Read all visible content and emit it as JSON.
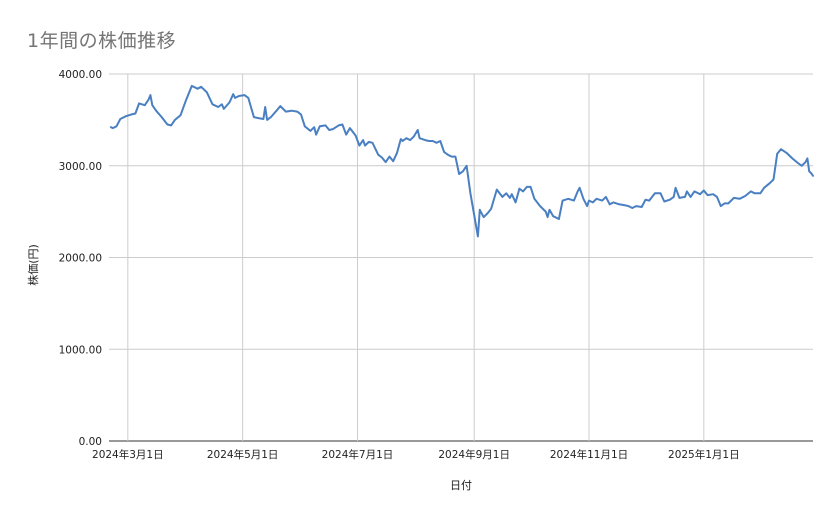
{
  "title": "1年間の株価推移",
  "colors": {
    "line": "#4a7fc1",
    "grid": "#cccccc",
    "axis": "#333333",
    "title": "#757575"
  },
  "chart_data": {
    "type": "line",
    "title": "1年間の株価推移",
    "xlabel": "日付",
    "ylabel": "株価(円)",
    "ylim": [
      0,
      4000
    ],
    "yticks": [
      0,
      1000,
      2000,
      3000,
      4000
    ],
    "ytick_labels": [
      "0.00",
      "1000.00",
      "2000.00",
      "3000.00",
      "4000.00"
    ],
    "xlim": [
      "2024-02-20",
      "2025-02-28"
    ],
    "xticks": [
      "2024-03-01",
      "2024-05-01",
      "2024-07-01",
      "2024-09-01",
      "2024-11-01",
      "2025-01-01"
    ],
    "xtick_labels": [
      "2024年3月1日",
      "2024年5月1日",
      "2024年7月1日",
      "2024年9月1日",
      "2024年11月1日",
      "2025年1月1日"
    ],
    "grid": true,
    "legend": "none",
    "series": [
      {
        "points": [
          [
            "2024-02-21",
            3420
          ],
          [
            "2024-02-22",
            3410
          ],
          [
            "2024-02-24",
            3430
          ],
          [
            "2024-02-26",
            3510
          ],
          [
            "2024-02-29",
            3540
          ],
          [
            "2024-03-03",
            3560
          ],
          [
            "2024-03-05",
            3570
          ],
          [
            "2024-03-07",
            3680
          ],
          [
            "2024-03-10",
            3660
          ],
          [
            "2024-03-12",
            3720
          ],
          [
            "2024-03-13",
            3770
          ],
          [
            "2024-03-14",
            3660
          ],
          [
            "2024-03-16",
            3600
          ],
          [
            "2024-03-19",
            3530
          ],
          [
            "2024-03-22",
            3450
          ],
          [
            "2024-03-24",
            3440
          ],
          [
            "2024-03-26",
            3500
          ],
          [
            "2024-03-29",
            3550
          ],
          [
            "2024-04-01",
            3720
          ],
          [
            "2024-04-04",
            3870
          ],
          [
            "2024-04-07",
            3840
          ],
          [
            "2024-04-09",
            3860
          ],
          [
            "2024-04-12",
            3800
          ],
          [
            "2024-04-15",
            3670
          ],
          [
            "2024-04-18",
            3640
          ],
          [
            "2024-04-20",
            3670
          ],
          [
            "2024-04-21",
            3620
          ],
          [
            "2024-04-24",
            3690
          ],
          [
            "2024-04-26",
            3780
          ],
          [
            "2024-04-27",
            3740
          ],
          [
            "2024-04-29",
            3760
          ],
          [
            "2024-05-02",
            3770
          ],
          [
            "2024-05-04",
            3740
          ],
          [
            "2024-05-07",
            3530
          ],
          [
            "2024-05-09",
            3520
          ],
          [
            "2024-05-12",
            3510
          ],
          [
            "2024-05-13",
            3640
          ],
          [
            "2024-05-14",
            3500
          ],
          [
            "2024-05-16",
            3530
          ],
          [
            "2024-05-19",
            3600
          ],
          [
            "2024-05-21",
            3650
          ],
          [
            "2024-05-24",
            3590
          ],
          [
            "2024-05-27",
            3600
          ],
          [
            "2024-05-30",
            3590
          ],
          [
            "2024-06-01",
            3560
          ],
          [
            "2024-06-03",
            3430
          ],
          [
            "2024-06-06",
            3380
          ],
          [
            "2024-06-08",
            3420
          ],
          [
            "2024-06-09",
            3340
          ],
          [
            "2024-06-11",
            3430
          ],
          [
            "2024-06-14",
            3440
          ],
          [
            "2024-06-16",
            3390
          ],
          [
            "2024-06-18",
            3400
          ],
          [
            "2024-06-21",
            3440
          ],
          [
            "2024-06-23",
            3450
          ],
          [
            "2024-06-25",
            3340
          ],
          [
            "2024-06-27",
            3410
          ],
          [
            "2024-06-30",
            3330
          ],
          [
            "2024-07-02",
            3220
          ],
          [
            "2024-07-04",
            3280
          ],
          [
            "2024-07-05",
            3220
          ],
          [
            "2024-07-07",
            3260
          ],
          [
            "2024-07-09",
            3250
          ],
          [
            "2024-07-12",
            3120
          ],
          [
            "2024-07-14",
            3090
          ],
          [
            "2024-07-16",
            3040
          ],
          [
            "2024-07-18",
            3100
          ],
          [
            "2024-07-20",
            3050
          ],
          [
            "2024-07-22",
            3140
          ],
          [
            "2024-07-24",
            3290
          ],
          [
            "2024-07-25",
            3270
          ],
          [
            "2024-07-27",
            3300
          ],
          [
            "2024-07-29",
            3280
          ],
          [
            "2024-07-31",
            3320
          ],
          [
            "2024-08-02",
            3390
          ],
          [
            "2024-08-03",
            3300
          ],
          [
            "2024-08-06",
            3280
          ],
          [
            "2024-08-08",
            3270
          ],
          [
            "2024-08-10",
            3270
          ],
          [
            "2024-08-12",
            3250
          ],
          [
            "2024-08-14",
            3270
          ],
          [
            "2024-08-16",
            3150
          ],
          [
            "2024-08-18",
            3120
          ],
          [
            "2024-08-20",
            3100
          ],
          [
            "2024-08-22",
            3100
          ],
          [
            "2024-08-24",
            2910
          ],
          [
            "2024-08-26",
            2940
          ],
          [
            "2024-08-28",
            3000
          ],
          [
            "2024-08-30",
            2700
          ],
          [
            "2024-09-03",
            2230
          ],
          [
            "2024-09-04",
            2520
          ],
          [
            "2024-09-06",
            2440
          ],
          [
            "2024-09-08",
            2480
          ],
          [
            "2024-09-10",
            2530
          ],
          [
            "2024-09-13",
            2740
          ],
          [
            "2024-09-16",
            2660
          ],
          [
            "2024-09-18",
            2700
          ],
          [
            "2024-09-20",
            2650
          ],
          [
            "2024-09-21",
            2690
          ],
          [
            "2024-09-23",
            2600
          ],
          [
            "2024-09-25",
            2750
          ],
          [
            "2024-09-27",
            2720
          ],
          [
            "2024-09-29",
            2770
          ],
          [
            "2024-10-01",
            2770
          ],
          [
            "2024-10-03",
            2640
          ],
          [
            "2024-10-06",
            2560
          ],
          [
            "2024-10-09",
            2500
          ],
          [
            "2024-10-10",
            2440
          ],
          [
            "2024-10-11",
            2520
          ],
          [
            "2024-10-13",
            2450
          ],
          [
            "2024-10-16",
            2420
          ],
          [
            "2024-10-18",
            2620
          ],
          [
            "2024-10-21",
            2640
          ],
          [
            "2024-10-24",
            2620
          ],
          [
            "2024-10-26",
            2720
          ],
          [
            "2024-10-27",
            2760
          ],
          [
            "2024-10-29",
            2640
          ],
          [
            "2024-10-31",
            2560
          ],
          [
            "2024-11-01",
            2620
          ],
          [
            "2024-11-03",
            2600
          ],
          [
            "2024-11-05",
            2640
          ],
          [
            "2024-11-08",
            2620
          ],
          [
            "2024-11-10",
            2660
          ],
          [
            "2024-11-12",
            2580
          ],
          [
            "2024-11-14",
            2600
          ],
          [
            "2024-11-17",
            2580
          ],
          [
            "2024-11-20",
            2570
          ],
          [
            "2024-11-22",
            2560
          ],
          [
            "2024-11-24",
            2540
          ],
          [
            "2024-11-26",
            2560
          ],
          [
            "2024-11-29",
            2550
          ],
          [
            "2024-12-01",
            2630
          ],
          [
            "2024-12-03",
            2620
          ],
          [
            "2024-12-06",
            2700
          ],
          [
            "2024-12-09",
            2700
          ],
          [
            "2024-12-11",
            2610
          ],
          [
            "2024-12-14",
            2630
          ],
          [
            "2024-12-16",
            2660
          ],
          [
            "2024-12-17",
            2760
          ],
          [
            "2024-12-19",
            2650
          ],
          [
            "2024-12-22",
            2660
          ],
          [
            "2024-12-23",
            2720
          ],
          [
            "2024-12-25",
            2660
          ],
          [
            "2024-12-27",
            2720
          ],
          [
            "2024-12-30",
            2690
          ],
          [
            "2025-01-01",
            2730
          ],
          [
            "2025-01-03",
            2680
          ],
          [
            "2025-01-06",
            2690
          ],
          [
            "2025-01-08",
            2660
          ],
          [
            "2025-01-10",
            2560
          ],
          [
            "2025-01-12",
            2590
          ],
          [
            "2025-01-14",
            2590
          ],
          [
            "2025-01-17",
            2650
          ],
          [
            "2025-01-20",
            2640
          ],
          [
            "2025-01-23",
            2670
          ],
          [
            "2025-01-26",
            2720
          ],
          [
            "2025-01-28",
            2700
          ],
          [
            "2025-01-31",
            2700
          ],
          [
            "2025-02-02",
            2760
          ],
          [
            "2025-02-05",
            2810
          ],
          [
            "2025-02-07",
            2850
          ],
          [
            "2025-02-09",
            3130
          ],
          [
            "2025-02-11",
            3180
          ],
          [
            "2025-02-14",
            3140
          ],
          [
            "2025-02-17",
            3080
          ],
          [
            "2025-02-20",
            3030
          ],
          [
            "2025-02-22",
            3000
          ],
          [
            "2025-02-24",
            3040
          ],
          [
            "2025-02-25",
            3080
          ],
          [
            "2025-02-26",
            2940
          ],
          [
            "2025-02-27",
            2920
          ],
          [
            "2025-02-28",
            2890
          ]
        ]
      }
    ]
  }
}
